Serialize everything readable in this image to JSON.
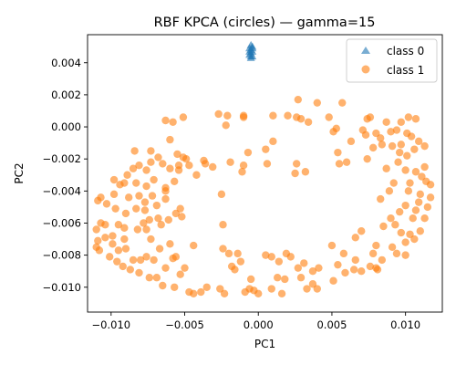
{
  "chart_data": {
    "type": "scatter",
    "title": "RBF KPCA (circles) — gamma=15",
    "xlabel": "PC1",
    "ylabel": "PC2",
    "xlim": [
      -0.0116,
      0.0125
    ],
    "ylim": [
      -0.01155,
      0.00575
    ],
    "xticks": [
      -0.01,
      -0.005,
      0.0,
      0.005,
      0.01
    ],
    "xtick_labels": [
      "−0.010",
      "−0.005",
      "0.000",
      "0.005",
      "0.010"
    ],
    "yticks": [
      0.004,
      0.002,
      0.0,
      -0.002,
      -0.004,
      -0.006,
      -0.008,
      -0.01
    ],
    "ytick_labels": [
      "0.004",
      "0.002",
      "0.000",
      "−0.002",
      "−0.004",
      "−0.006",
      "−0.008",
      "−0.010"
    ],
    "grid": false,
    "legend_position": "top-right",
    "series": [
      {
        "name": "class 0",
        "marker": "triangle",
        "color": "#1f77b4",
        "points": [
          [
            -0.0005,
            0.0051
          ],
          [
            -0.0004,
            0.005
          ],
          [
            -0.0006,
            0.0049
          ],
          [
            -0.0005,
            0.0048
          ],
          [
            -0.0004,
            0.0047
          ],
          [
            -0.0005,
            0.0046
          ],
          [
            -0.0006,
            0.0045
          ],
          [
            -0.0004,
            0.0044
          ],
          [
            -0.0005,
            0.0043
          ],
          [
            -0.0006,
            0.0047
          ],
          [
            -0.0004,
            0.0049
          ],
          [
            -0.0005,
            0.0044
          ]
        ]
      },
      {
        "name": "class 1",
        "marker": "circle",
        "color": "#ff7f0e",
        "points": [
          [
            0.0027,
            0.0017
          ],
          [
            0.004,
            0.0015
          ],
          [
            0.0057,
            0.0015
          ],
          [
            0.0074,
            0.0005
          ],
          [
            0.0076,
            0.0006
          ],
          [
            0.0087,
            0.0003
          ],
          [
            0.0097,
            0.0003
          ],
          [
            0.0102,
            0.0006
          ],
          [
            0.0107,
            0.0005
          ],
          [
            -0.001,
            0.0006
          ],
          [
            -0.001,
            0.0007
          ],
          [
            -0.0021,
            0.0007
          ],
          [
            -0.0027,
            0.0008
          ],
          [
            -0.0051,
            0.0006
          ],
          [
            -0.0058,
            0.0003
          ],
          [
            -0.0063,
            0.0004
          ],
          [
            -0.0022,
            0.0001
          ],
          [
            0.001,
            0.0007
          ],
          [
            0.002,
            0.0007
          ],
          [
            0.0029,
            0.0005
          ],
          [
            0.0034,
            0.0003
          ],
          [
            0.0026,
            0.0006
          ],
          [
            0.0048,
            0.0006
          ],
          [
            0.0053,
            -0.0001
          ],
          [
            0.0051,
            -0.0003
          ],
          [
            0.0071,
            -0.0002
          ],
          [
            0.0073,
            -0.0005
          ],
          [
            0.008,
            -0.0004
          ],
          [
            0.009,
            -0.0003
          ],
          [
            0.0094,
            -0.0002
          ],
          [
            0.0101,
            -0.0004
          ],
          [
            0.0104,
            -0.0006
          ],
          [
            0.0109,
            -0.0009
          ],
          [
            0.0113,
            -0.0012
          ],
          [
            0.0106,
            -0.0014
          ],
          [
            0.0097,
            -0.0011
          ],
          [
            0.0084,
            -0.0011
          ],
          [
            0.0078,
            -0.0013
          ],
          [
            0.0063,
            -0.0009
          ],
          [
            0.0054,
            -0.0016
          ],
          [
            0.006,
            -0.0022
          ],
          [
            0.0074,
            -0.002
          ],
          [
            0.0087,
            -0.0026
          ],
          [
            0.0095,
            -0.0022
          ],
          [
            0.01,
            -0.0027
          ],
          [
            0.0107,
            -0.0028
          ],
          [
            0.0111,
            -0.0031
          ],
          [
            0.0114,
            -0.0034
          ],
          [
            0.0117,
            -0.0036
          ],
          [
            0.0103,
            -0.0035
          ],
          [
            0.0092,
            -0.0035
          ],
          [
            0.0089,
            -0.004
          ],
          [
            0.0083,
            -0.0045
          ],
          [
            0.0102,
            -0.004
          ],
          [
            0.011,
            -0.0042
          ],
          [
            0.0117,
            -0.0044
          ],
          [
            0.0109,
            -0.0047
          ],
          [
            0.01,
            -0.0049
          ],
          [
            0.0096,
            -0.0053
          ],
          [
            0.009,
            -0.0057
          ],
          [
            0.0085,
            -0.0062
          ],
          [
            0.0093,
            -0.0061
          ],
          [
            0.0105,
            -0.0057
          ],
          [
            0.0113,
            -0.0057
          ],
          [
            0.011,
            -0.0065
          ],
          [
            0.0106,
            -0.007
          ],
          [
            0.01,
            -0.0072
          ],
          [
            0.0091,
            -0.0075
          ],
          [
            0.008,
            -0.0074
          ],
          [
            0.0078,
            -0.0079
          ],
          [
            0.0084,
            -0.0083
          ],
          [
            0.0094,
            -0.0079
          ],
          [
            0.01,
            -0.008
          ],
          [
            0.0103,
            -0.0067
          ],
          [
            0.0097,
            -0.0066
          ],
          [
            0.007,
            -0.0065
          ],
          [
            0.0066,
            -0.0069
          ],
          [
            0.008,
            -0.0088
          ],
          [
            0.0076,
            -0.0087
          ],
          [
            0.0058,
            -0.0079
          ],
          [
            0.005,
            -0.0074
          ],
          [
            0.0054,
            -0.0086
          ],
          [
            0.0059,
            -0.0091
          ],
          [
            0.0065,
            -0.0089
          ],
          [
            0.007,
            -0.009
          ],
          [
            0.0051,
            -0.0096
          ],
          [
            0.0041,
            -0.0088
          ],
          [
            0.004,
            -0.0101
          ],
          [
            0.0033,
            -0.0101
          ],
          [
            0.0029,
            -0.0094
          ],
          [
            0.0027,
            -0.0088
          ],
          [
            0.0022,
            -0.0081
          ],
          [
            0.0019,
            -0.0079
          ],
          [
            0.0014,
            -0.0084
          ],
          [
            0.0013,
            -0.0094
          ],
          [
            0.0009,
            -0.0101
          ],
          [
            0.0,
            -0.0104
          ],
          [
            -0.0006,
            -0.0101
          ],
          [
            -0.0009,
            -0.0103
          ],
          [
            -0.0016,
            -0.0089
          ],
          [
            -0.0018,
            -0.0087
          ],
          [
            -0.0023,
            -0.0104
          ],
          [
            -0.0026,
            -0.0101
          ],
          [
            -0.0035,
            -0.01
          ],
          [
            -0.0044,
            -0.0104
          ],
          [
            -0.0047,
            -0.0103
          ],
          [
            -0.0057,
            -0.01
          ],
          [
            -0.0065,
            -0.0099
          ],
          [
            -0.0069,
            -0.0094
          ],
          [
            -0.0074,
            -0.0094
          ],
          [
            -0.0081,
            -0.0091
          ],
          [
            -0.0087,
            -0.0089
          ],
          [
            -0.0092,
            -0.0087
          ],
          [
            -0.0096,
            -0.0084
          ],
          [
            -0.0101,
            -0.0081
          ],
          [
            -0.0108,
            -0.0077
          ],
          [
            -0.011,
            -0.0075
          ],
          [
            -0.0104,
            -0.0069
          ],
          [
            -0.0099,
            -0.0068
          ],
          [
            -0.0091,
            -0.007
          ],
          [
            -0.0082,
            -0.0064
          ],
          [
            -0.0076,
            -0.0064
          ],
          [
            -0.0078,
            -0.006
          ],
          [
            -0.0074,
            -0.0058
          ],
          [
            -0.0068,
            -0.0057
          ],
          [
            -0.0061,
            -0.0058
          ],
          [
            -0.0056,
            -0.0054
          ],
          [
            -0.0053,
            -0.0051
          ],
          [
            -0.0077,
            -0.0052
          ],
          [
            -0.0083,
            -0.0051
          ],
          [
            -0.009,
            -0.0054
          ],
          [
            -0.0097,
            -0.0051
          ],
          [
            -0.0103,
            -0.0048
          ],
          [
            -0.0109,
            -0.0046
          ],
          [
            -0.0107,
            -0.0044
          ],
          [
            -0.0098,
            -0.0042
          ],
          [
            -0.0088,
            -0.0044
          ],
          [
            -0.0081,
            -0.0043
          ],
          [
            -0.0077,
            -0.0047
          ],
          [
            -0.0072,
            -0.0043
          ],
          [
            -0.0069,
            -0.0049
          ],
          [
            -0.0063,
            -0.0045
          ],
          [
            -0.0063,
            -0.0038
          ],
          [
            -0.0071,
            -0.0033
          ],
          [
            -0.0076,
            -0.0037
          ],
          [
            -0.0083,
            -0.0035
          ],
          [
            -0.0091,
            -0.0035
          ],
          [
            -0.0094,
            -0.0036
          ],
          [
            -0.0098,
            -0.0033
          ],
          [
            -0.0089,
            -0.003
          ],
          [
            -0.0085,
            -0.0026
          ],
          [
            -0.0081,
            -0.0024
          ],
          [
            -0.0073,
            -0.0022
          ],
          [
            -0.0065,
            -0.0023
          ],
          [
            -0.006,
            -0.0026
          ],
          [
            -0.0054,
            -0.0024
          ],
          [
            -0.0047,
            -0.0024
          ],
          [
            -0.0037,
            -0.0021
          ],
          [
            -0.0031,
            -0.0025
          ],
          [
            -0.0042,
            -0.003
          ],
          [
            -0.0025,
            -0.0042
          ],
          [
            -0.0052,
            -0.0056
          ],
          [
            -0.0063,
            -0.004
          ],
          [
            -0.0057,
            -0.0034
          ],
          [
            -0.0054,
            -0.0027
          ],
          [
            -0.0076,
            -0.0027
          ],
          [
            -0.0068,
            -0.0019
          ],
          [
            -0.0051,
            -0.0019
          ],
          [
            -0.0036,
            -0.0023
          ],
          [
            -0.0019,
            -0.0022
          ],
          [
            -0.001,
            -0.0024
          ],
          [
            -0.0011,
            -0.0028
          ],
          [
            0.0006,
            -0.0023
          ],
          [
            0.0026,
            -0.0023
          ],
          [
            0.0055,
            -0.0023
          ],
          [
            0.0032,
            -0.0028
          ],
          [
            0.001,
            -0.0009
          ],
          [
            -0.0024,
            -0.0061
          ],
          [
            -0.0044,
            -0.0074
          ],
          [
            -0.0024,
            -0.0076
          ],
          [
            -0.002,
            -0.0079
          ],
          [
            -0.0014,
            -0.0079
          ],
          [
            0.0005,
            -0.008
          ],
          [
            0.0009,
            -0.0081
          ],
          [
            0.0018,
            -0.0095
          ],
          [
            0.0016,
            -0.0104
          ],
          [
            0.0031,
            -0.0085
          ],
          [
            0.0037,
            -0.009
          ],
          [
            0.0037,
            -0.0098
          ],
          [
            -0.0039,
            -0.0103
          ],
          [
            -0.0012,
            -0.0084
          ],
          [
            -0.0005,
            -0.0095
          ],
          [
            -0.0003,
            -0.0102
          ],
          [
            -0.0073,
            -0.007
          ],
          [
            -0.0076,
            -0.0081
          ],
          [
            -0.0067,
            -0.0076
          ],
          [
            -0.006,
            -0.0073
          ],
          [
            -0.0058,
            -0.0082
          ],
          [
            -0.0071,
            -0.0083
          ],
          [
            -0.008,
            -0.0083
          ],
          [
            -0.0085,
            -0.0083
          ],
          [
            -0.0095,
            -0.0077
          ],
          [
            -0.0099,
            -0.0073
          ],
          [
            -0.009,
            -0.0076
          ],
          [
            -0.0109,
            -0.0071
          ],
          [
            -0.0107,
            -0.006
          ],
          [
            -0.011,
            -0.0064
          ],
          [
            -0.0095,
            -0.0061
          ],
          [
            -0.0104,
            -0.0061
          ],
          [
            -0.0091,
            -0.0063
          ],
          [
            -0.0066,
            -0.0061
          ],
          [
            -0.0056,
            -0.0081
          ],
          [
            -0.005,
            -0.0088
          ],
          [
            -0.0053,
            -0.0092
          ],
          [
            -0.0063,
            -0.0088
          ],
          [
            0.0066,
            -0.0083
          ],
          [
            0.0107,
            -0.0052
          ],
          [
            0.0115,
            -0.005
          ],
          [
            0.0113,
            -0.0025
          ],
          [
            0.0101,
            -0.0018
          ],
          [
            0.0096,
            -0.0016
          ],
          [
            0.0091,
            -0.0012
          ],
          [
            0.0083,
            -0.0007
          ],
          [
            0.0025,
            -0.0029
          ],
          [
            -0.0007,
            -0.0016
          ],
          [
            0.0005,
            -0.0014
          ],
          [
            0.0081,
            -0.0089
          ],
          [
            -0.0084,
            -0.0015
          ],
          [
            -0.0073,
            -0.0015
          ],
          [
            -0.006,
            -0.0008
          ],
          [
            -0.0055,
            -0.0017
          ],
          [
            -0.0049,
            -0.002
          ]
        ]
      }
    ]
  }
}
